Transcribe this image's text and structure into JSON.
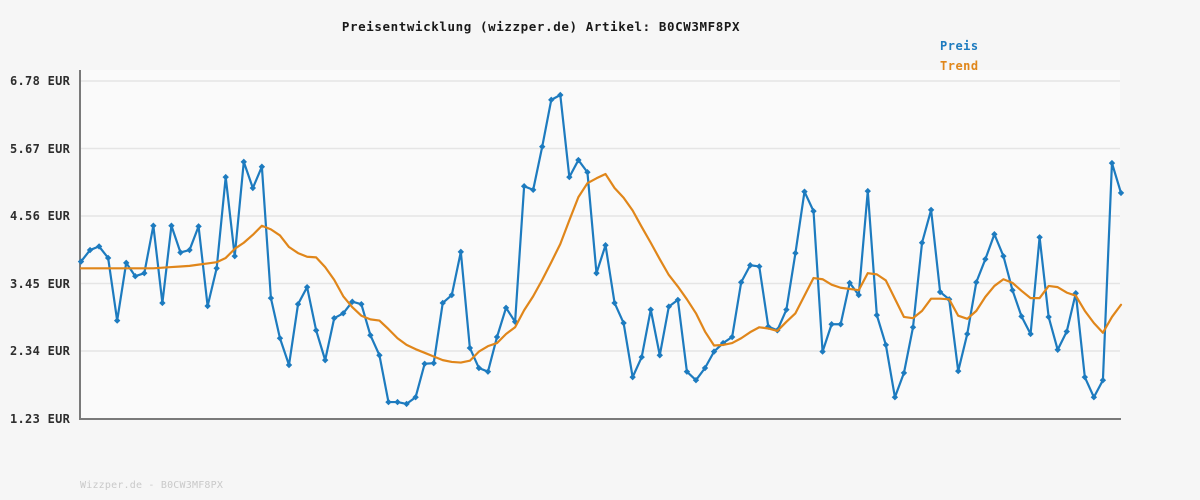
{
  "chart": {
    "title": "Preisentwicklung (wizzper.de) Artikel: B0CW3MF8PX",
    "watermark": "Wizzper.de - B0CW3MF8PX",
    "legend": [
      {
        "label": "Preis",
        "color": "#1d7bbf"
      },
      {
        "label": "Trend",
        "color": "#e0861a"
      }
    ]
  },
  "chart_data": {
    "type": "line",
    "title": "Preisentwicklung (wizzper.de) Artikel: B0CW3MF8PX",
    "xlabel": "",
    "ylabel": "EUR",
    "ylim": [
      1.23,
      6.78
    ],
    "y_ticks": [
      6.78,
      5.67,
      4.56,
      3.45,
      2.34,
      1.23
    ],
    "y_tick_labels": [
      "6.78 EUR",
      "5.67 EUR",
      "4.56 EUR",
      "3.45 EUR",
      "2.34 EUR",
      "1.23 EUR"
    ],
    "x_tick_labels": [],
    "grid": "horizontal",
    "legend_position": "top-right",
    "colors": {
      "background": "#f6f6f6",
      "plot_background": "#fafafa",
      "grid": "#e5e5e5",
      "axis": "#7a7a7a",
      "title_text": "#1a1a1a",
      "tick_text": "#2e2e2e",
      "watermark_text": "#c9c9c9"
    },
    "series": [
      {
        "name": "Preis",
        "color": "#1d7bbf",
        "marker": "diamond",
        "values": [
          3.81,
          4.0,
          4.06,
          3.87,
          2.84,
          3.79,
          3.57,
          3.62,
          4.4,
          3.13,
          4.4,
          3.96,
          4.0,
          4.39,
          3.08,
          3.7,
          5.2,
          3.9,
          5.45,
          5.02,
          5.37,
          3.21,
          2.55,
          2.11,
          3.11,
          3.39,
          2.68,
          2.19,
          2.88,
          2.96,
          3.15,
          3.11,
          2.6,
          2.27,
          1.5,
          1.5,
          1.47,
          1.58,
          2.13,
          2.14,
          3.13,
          3.26,
          3.97,
          2.39,
          2.06,
          2.0,
          2.57,
          3.05,
          2.82,
          5.05,
          4.99,
          5.7,
          6.47,
          6.55,
          5.2,
          5.48,
          5.28,
          3.62,
          4.08,
          3.13,
          2.8,
          1.91,
          2.24,
          3.02,
          2.27,
          3.07,
          3.18,
          2.0,
          1.86,
          2.06,
          2.33,
          2.47,
          2.57,
          3.47,
          3.75,
          3.73,
          2.74,
          2.68,
          3.02,
          3.95,
          4.96,
          4.64,
          2.33,
          2.78,
          2.78,
          3.46,
          3.26,
          4.97,
          2.93,
          2.44,
          1.58,
          1.98,
          2.73,
          4.12,
          4.66,
          3.31,
          3.19,
          2.01,
          2.62,
          3.47,
          3.85,
          4.26,
          3.9,
          3.34,
          2.91,
          2.62,
          4.21,
          2.9,
          2.36,
          2.66,
          3.29,
          1.91,
          1.58,
          1.86,
          5.43,
          4.94
        ]
      },
      {
        "name": "Trend",
        "color": "#e0861a",
        "marker": "none",
        "values": [
          3.7,
          3.7,
          3.7,
          3.7,
          3.7,
          3.7,
          3.7,
          3.7,
          3.7,
          3.71,
          3.72,
          3.73,
          3.74,
          3.76,
          3.78,
          3.8,
          3.87,
          4.02,
          4.12,
          4.25,
          4.4,
          4.34,
          4.24,
          4.05,
          3.95,
          3.89,
          3.88,
          3.72,
          3.51,
          3.24,
          3.06,
          2.92,
          2.86,
          2.84,
          2.7,
          2.55,
          2.44,
          2.37,
          2.31,
          2.25,
          2.19,
          2.16,
          2.15,
          2.18,
          2.33,
          2.42,
          2.47,
          2.62,
          2.73,
          3.01,
          3.24,
          3.51,
          3.8,
          4.1,
          4.49,
          4.87,
          5.1,
          5.18,
          5.25,
          5.02,
          4.86,
          4.65,
          4.38,
          4.12,
          3.85,
          3.59,
          3.4,
          3.19,
          2.96,
          2.66,
          2.43,
          2.44,
          2.47,
          2.55,
          2.65,
          2.73,
          2.71,
          2.67,
          2.82,
          2.96,
          3.25,
          3.54,
          3.52,
          3.43,
          3.38,
          3.36,
          3.34,
          3.62,
          3.6,
          3.5,
          3.2,
          2.9,
          2.88,
          3.0,
          3.2,
          3.2,
          3.19,
          2.92,
          2.87,
          3.0,
          3.23,
          3.41,
          3.52,
          3.46,
          3.33,
          3.21,
          3.21,
          3.41,
          3.39,
          3.3,
          3.25,
          3.0,
          2.8,
          2.64,
          2.9,
          3.1
        ]
      }
    ]
  }
}
